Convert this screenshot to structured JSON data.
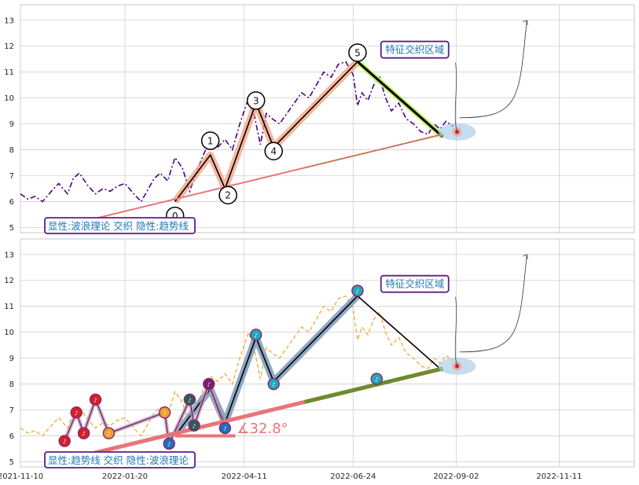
{
  "chart_data": [
    {
      "type": "line",
      "panel": "top",
      "x_axis": {
        "range": [
          "2021-11-10",
          "2023-01-01"
        ]
      },
      "y_axis": {
        "range": [
          4.8,
          13.6
        ],
        "ticks": [
          5,
          6,
          7,
          8,
          9,
          10,
          11,
          12,
          13
        ]
      },
      "grid": true,
      "series": [
        {
          "style": "dash-dot",
          "color": "#4b0082",
          "x": [
            "2021-11-10",
            "2021-11-15",
            "2021-11-20",
            "2021-11-25",
            "2021-12-01",
            "2021-12-06",
            "2021-12-12",
            "2021-12-16",
            "2021-12-20",
            "2021-12-26",
            "2021-12-31",
            "2022-01-05",
            "2022-01-10",
            "2022-01-15",
            "2022-01-20",
            "2022-01-26",
            "2022-01-31",
            "2022-02-05",
            "2022-02-09",
            "2022-02-13",
            "2022-02-18",
            "2022-02-23",
            "2022-02-28",
            "2022-03-05",
            "2022-03-10",
            "2022-03-15",
            "2022-03-19",
            "2022-03-24",
            "2022-03-29",
            "2022-04-03",
            "2022-04-08",
            "2022-04-14",
            "2022-04-18",
            "2022-04-22",
            "2022-04-26",
            "2022-04-30",
            "2022-05-05",
            "2022-05-10",
            "2022-05-15",
            "2022-05-20",
            "2022-05-25",
            "2022-05-30",
            "2022-06-04",
            "2022-06-09",
            "2022-06-14",
            "2022-06-19",
            "2022-06-24",
            "2022-06-27",
            "2022-06-30",
            "2022-07-04",
            "2022-07-08",
            "2022-07-12",
            "2022-07-16",
            "2022-07-20",
            "2022-07-25",
            "2022-07-30",
            "2022-08-04",
            "2022-08-09",
            "2022-08-14",
            "2022-08-18",
            "2022-08-22",
            "2022-08-26",
            "2022-08-31"
          ],
          "values": [
            6.3,
            6.1,
            6.2,
            6.0,
            6.4,
            6.7,
            6.3,
            6.9,
            7.1,
            6.6,
            6.3,
            6.5,
            6.4,
            6.6,
            6.7,
            6.3,
            6.0,
            6.5,
            6.9,
            7.1,
            6.8,
            7.7,
            7.3,
            6.4,
            7.2,
            7.9,
            8.3,
            8.1,
            8.4,
            8.0,
            9.0,
            10.0,
            9.3,
            8.2,
            9.4,
            9.2,
            9.0,
            9.4,
            9.8,
            10.2,
            10.0,
            10.5,
            11.0,
            10.8,
            11.3,
            11.4,
            10.9,
            9.7,
            10.2,
            9.9,
            10.5,
            10.8,
            10.0,
            9.5,
            9.8,
            9.2,
            9.0,
            8.7,
            8.6,
            9.0,
            8.8,
            9.1,
            8.9
          ]
        }
      ],
      "overlays": {
        "wave": {
          "dates": [
            "2022-02-23",
            "2022-03-19",
            "2022-03-29",
            "2022-04-19",
            "2022-05-01",
            "2022-06-27",
            "2022-08-24"
          ],
          "values": [
            6.0,
            7.8,
            6.5,
            9.8,
            8.1,
            11.4,
            8.5
          ]
        },
        "trendline": {
          "dates": [
            "2021-12-20",
            "2022-08-24"
          ],
          "values": [
            5.2,
            8.6
          ]
        },
        "forecast_target": {
          "date": "2022-10-20",
          "value": 13.0
        },
        "wave_labels": [
          "0",
          "1",
          "2",
          "3",
          "4",
          "5"
        ],
        "caption": "显性:波浪理论 交织 隐性:趋势线",
        "zone_label": "特征交织区域"
      }
    },
    {
      "type": "line",
      "panel": "bottom",
      "x_axis": {
        "range": [
          "2021-11-10",
          "2023-01-01"
        ],
        "tick_labels": [
          "2021-11-10",
          "2022-01-20",
          "2022-04-11",
          "2022-06-24",
          "2022-09-02",
          "2022-11-11"
        ]
      },
      "y_axis": {
        "range": [
          4.8,
          13.6
        ],
        "ticks": [
          5,
          6,
          7,
          8,
          9,
          10,
          11,
          12,
          13
        ]
      },
      "grid": true,
      "series": [
        {
          "style": "dashed",
          "color": "#f0b040",
          "x": [
            "2021-11-10",
            "2021-11-15",
            "2021-11-20",
            "2021-11-25",
            "2021-12-01",
            "2021-12-06",
            "2021-12-12",
            "2021-12-16",
            "2021-12-20",
            "2021-12-26",
            "2021-12-31",
            "2022-01-05",
            "2022-01-10",
            "2022-01-15",
            "2022-01-20",
            "2022-01-26",
            "2022-01-31",
            "2022-02-05",
            "2022-02-09",
            "2022-02-13",
            "2022-02-18",
            "2022-02-23",
            "2022-02-28",
            "2022-03-05",
            "2022-03-10",
            "2022-03-15",
            "2022-03-19",
            "2022-03-24",
            "2022-03-29",
            "2022-04-03",
            "2022-04-08",
            "2022-04-14",
            "2022-04-18",
            "2022-04-22",
            "2022-04-26",
            "2022-04-30",
            "2022-05-05",
            "2022-05-10",
            "2022-05-15",
            "2022-05-20",
            "2022-05-25",
            "2022-05-30",
            "2022-06-04",
            "2022-06-09",
            "2022-06-14",
            "2022-06-19",
            "2022-06-24",
            "2022-06-27",
            "2022-06-30",
            "2022-07-04",
            "2022-07-08",
            "2022-07-12",
            "2022-07-16",
            "2022-07-20",
            "2022-07-25",
            "2022-07-30",
            "2022-08-04",
            "2022-08-09",
            "2022-08-14",
            "2022-08-18",
            "2022-08-22",
            "2022-08-26",
            "2022-08-31"
          ],
          "values": [
            6.3,
            6.1,
            6.2,
            6.0,
            6.4,
            6.7,
            6.3,
            6.9,
            7.1,
            6.6,
            6.3,
            6.5,
            6.4,
            6.6,
            6.7,
            6.3,
            6.0,
            6.5,
            6.9,
            7.1,
            6.8,
            7.7,
            7.3,
            6.4,
            7.2,
            7.9,
            8.3,
            8.1,
            8.4,
            8.0,
            9.0,
            10.0,
            9.3,
            8.2,
            9.4,
            9.2,
            9.0,
            9.4,
            9.8,
            10.2,
            10.0,
            10.5,
            11.0,
            10.8,
            11.3,
            11.4,
            10.9,
            9.7,
            10.2,
            9.9,
            10.5,
            10.8,
            10.0,
            9.5,
            9.8,
            9.2,
            9.0,
            8.7,
            8.6,
            9.0,
            8.8,
            9.1,
            8.9
          ]
        }
      ],
      "overlays": {
        "wave": {
          "dates": [
            "2022-02-23",
            "2022-03-19",
            "2022-03-29",
            "2022-04-19",
            "2022-05-01",
            "2022-06-27",
            "2022-08-24"
          ],
          "values": [
            6.0,
            7.8,
            6.5,
            9.8,
            8.1,
            11.4,
            8.5
          ]
        },
        "trendline": {
          "dates": [
            "2021-12-20",
            "2022-08-24"
          ],
          "values": [
            5.2,
            8.6
          ]
        },
        "baseline": {
          "dates": [
            "2022-02-23",
            "2022-04-05"
          ],
          "values": [
            6.0,
            6.0
          ]
        },
        "forecast_target": {
          "date": "2022-10-20",
          "value": 13.0
        },
        "markers": {
          "dates": [
            "2021-12-10",
            "2021-12-18",
            "2021-12-23",
            "2021-12-31",
            "2022-01-09",
            "2022-02-16",
            "2022-02-19",
            "2022-03-05",
            "2022-03-08",
            "2022-03-18",
            "2022-03-29",
            "2022-04-19",
            "2022-05-01",
            "2022-06-27",
            "2022-07-10"
          ],
          "values": [
            5.8,
            6.9,
            6.1,
            7.4,
            6.1,
            6.9,
            5.7,
            7.4,
            6.4,
            8.0,
            6.3,
            9.9,
            8.0,
            11.6,
            8.2
          ]
        },
        "angle_label": "∡32.8°",
        "caption": "显性:趋势线 交织 隐性:波浪理论",
        "zone_label": "特征交织区域"
      }
    }
  ]
}
